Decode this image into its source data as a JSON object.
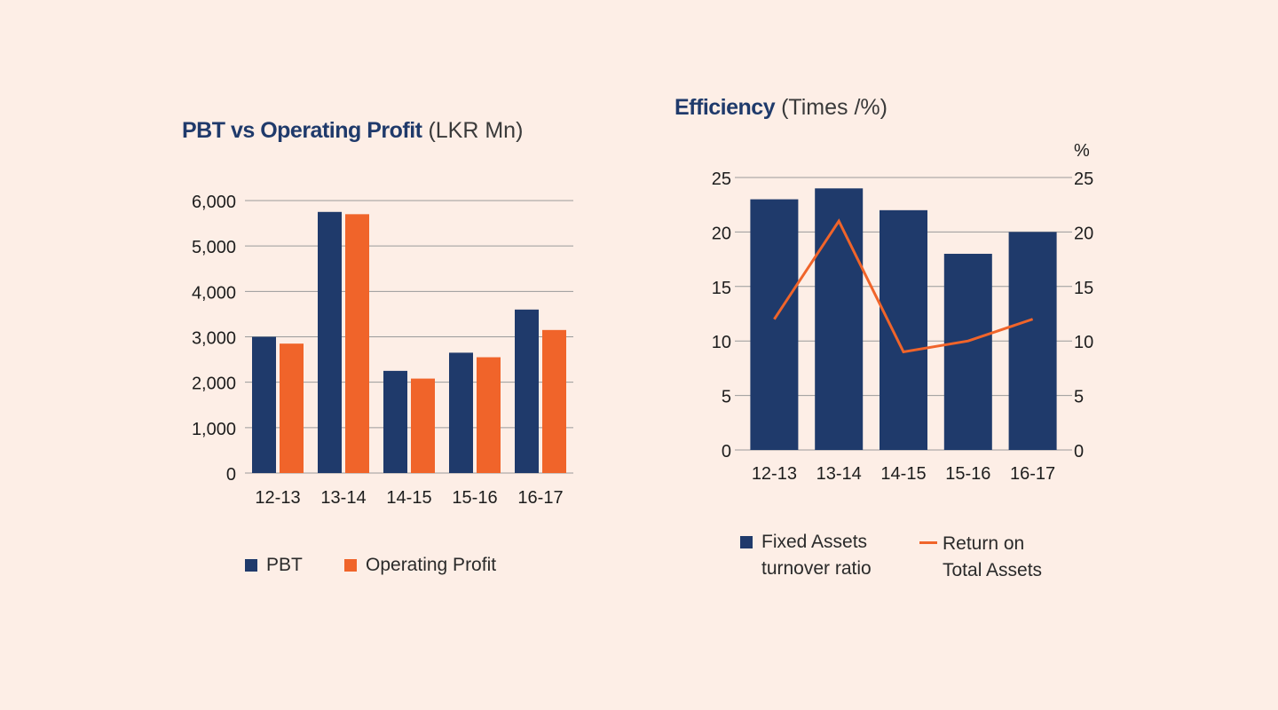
{
  "colors": {
    "background": "#fdeee6",
    "navy": "#1f3a6b",
    "orange": "#f0642a",
    "grid": "#9a9a9a"
  },
  "charts": [
    {
      "title_bold": "PBT vs Operating Profit",
      "title_unit": "(LKR Mn)",
      "legend": [
        "PBT",
        "Operating Profit"
      ]
    },
    {
      "title_bold": "Efficiency",
      "title_unit": "(Times /%)",
      "right_axis_label": "%",
      "legend": [
        "Fixed Assets turnover ratio",
        "Return on Total Assets"
      ],
      "legend_lines": [
        [
          "Fixed Assets",
          "turnover ratio"
        ],
        [
          "Return on",
          "Total Assets"
        ]
      ]
    }
  ],
  "chart_data": [
    {
      "type": "bar",
      "title": "PBT vs Operating Profit (LKR Mn)",
      "categories": [
        "12-13",
        "13-14",
        "14-15",
        "15-16",
        "16-17"
      ],
      "series": [
        {
          "name": "PBT",
          "values": [
            3000,
            5750,
            2250,
            2650,
            3600
          ],
          "color": "#1f3a6b"
        },
        {
          "name": "Operating Profit",
          "values": [
            2850,
            5700,
            2080,
            2550,
            3150
          ],
          "color": "#f0642a"
        }
      ],
      "ylim": [
        0,
        6000
      ],
      "yticks": [
        0,
        1000,
        2000,
        3000,
        4000,
        5000,
        6000
      ],
      "ytick_labels": [
        "0",
        "1,000",
        "2,000",
        "3,000",
        "4,000",
        "5,000",
        "6,000"
      ],
      "grid": true,
      "legend_position": "bottom"
    },
    {
      "type": "bar+line",
      "title": "Efficiency (Times /%)",
      "categories": [
        "12-13",
        "13-14",
        "14-15",
        "15-16",
        "16-17"
      ],
      "series": [
        {
          "name": "Fixed Assets turnover ratio",
          "type": "bar",
          "axis": "left",
          "values": [
            23,
            24,
            22,
            18,
            20
          ],
          "color": "#1f3a6b"
        },
        {
          "name": "Return on Total Assets",
          "type": "line",
          "axis": "right",
          "values": [
            12,
            21,
            9,
            10,
            12
          ],
          "color": "#f0642a"
        }
      ],
      "ylim": [
        0,
        25
      ],
      "y2lim": [
        0,
        25
      ],
      "yticks": [
        0,
        5,
        10,
        15,
        20,
        25
      ],
      "y2label": "%",
      "grid": true,
      "legend_position": "bottom"
    }
  ]
}
